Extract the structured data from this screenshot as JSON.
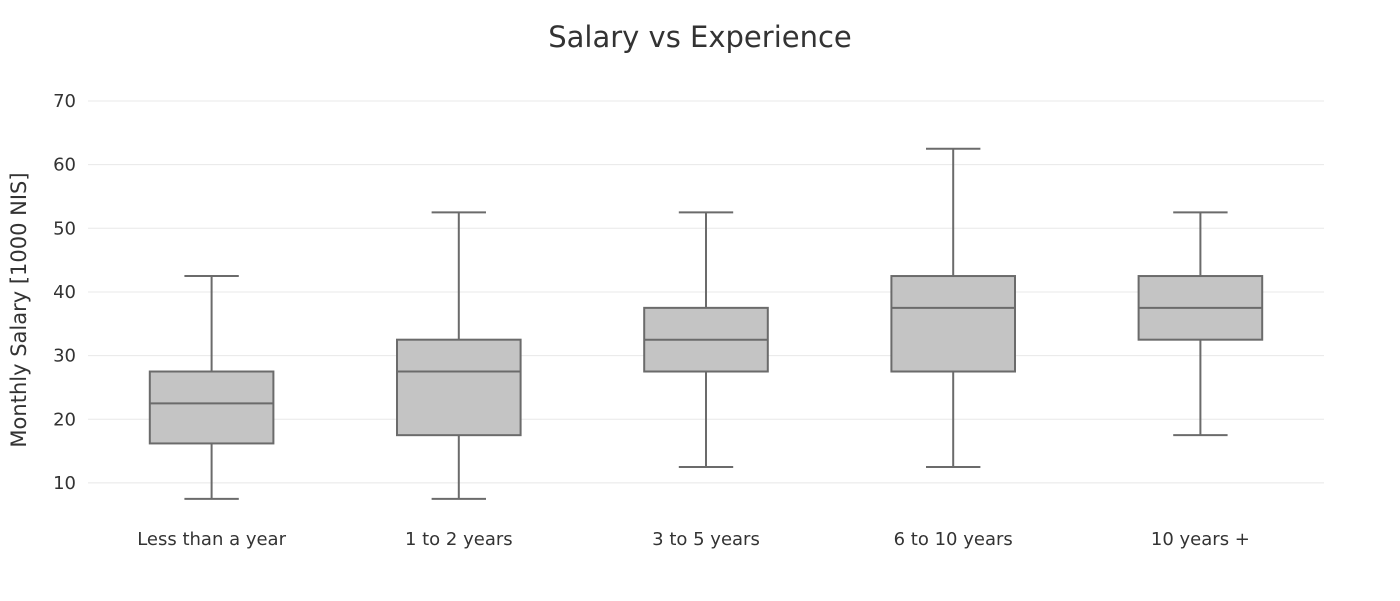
{
  "chart_data": {
    "type": "box",
    "title": "Salary vs Experience",
    "xlabel": "",
    "ylabel": "Monthly Salary [1000 NIS]",
    "ylim": [
      7,
      70
    ],
    "yticks": [
      10,
      20,
      30,
      40,
      50,
      60,
      70
    ],
    "grid": true,
    "legend": "none",
    "colors": {
      "box_fill": "#c4c4c4",
      "line": "#6b6b6b",
      "grid": "#e8e8e8"
    },
    "categories": [
      "Less than a year",
      "1 to 2 years",
      "3 to 5 years",
      "6 to 10 years",
      "10 years +"
    ],
    "boxes": [
      {
        "category": "Less than a year",
        "min": 7.5,
        "q1": 16.2,
        "median": 22.5,
        "q3": 27.5,
        "max": 42.5
      },
      {
        "category": "1 to 2 years",
        "min": 7.5,
        "q1": 17.5,
        "median": 27.5,
        "q3": 32.5,
        "max": 52.5
      },
      {
        "category": "3 to 5 years",
        "min": 12.5,
        "q1": 27.5,
        "median": 32.5,
        "q3": 37.5,
        "max": 52.5
      },
      {
        "category": "6 to 10 years",
        "min": 12.5,
        "q1": 27.5,
        "median": 37.5,
        "q3": 42.5,
        "max": 62.5
      },
      {
        "category": "10 years +",
        "min": 17.5,
        "q1": 32.5,
        "median": 37.5,
        "q3": 42.5,
        "max": 52.5
      }
    ]
  }
}
